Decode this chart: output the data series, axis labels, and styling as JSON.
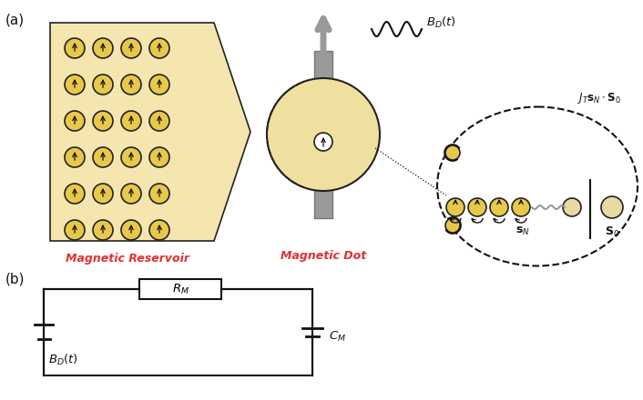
{
  "bg_color": "#ffffff",
  "panel_a_label": "(a)",
  "panel_b_label": "(b)",
  "reservoir_fill": "#f5e6b0",
  "dot_fill": "#f0e0a0",
  "spin_fill": "#e8c84a",
  "stroke": "#222222",
  "gray_color": "#999999",
  "gray_dark": "#777777",
  "red_color": "#e03030",
  "black": "#111111"
}
